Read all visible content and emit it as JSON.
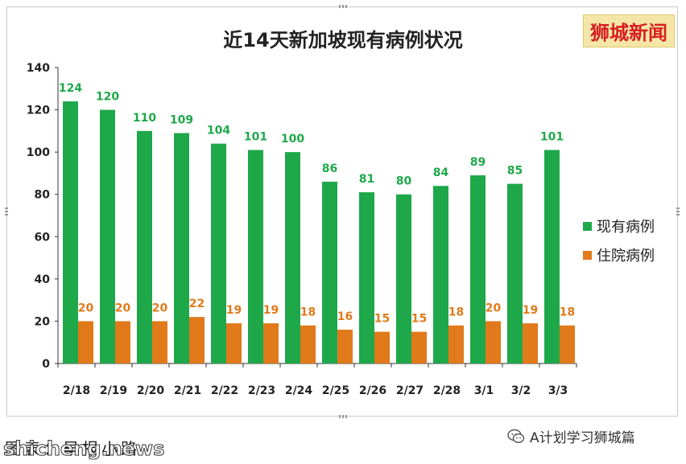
{
  "brand": "狮城新闻",
  "caption": "图表：早报小路",
  "source": "A计划学习狮城篇",
  "watermark": "shicheng.news",
  "legend": [
    "现有病例",
    "住院病例"
  ],
  "colors": {
    "existing": "#1ea84a",
    "hospital": "#e07a1a"
  },
  "chart_data": {
    "type": "bar",
    "title": "近14天新加坡现有病例状况",
    "categories": [
      "2/18",
      "2/19",
      "2/20",
      "2/21",
      "2/22",
      "2/23",
      "2/24",
      "2/25",
      "2/26",
      "2/27",
      "2/28",
      "3/1",
      "3/2",
      "3/3"
    ],
    "series": [
      {
        "name": "现有病例",
        "values": [
          124,
          120,
          110,
          109,
          104,
          101,
          100,
          86,
          81,
          80,
          84,
          89,
          85,
          101
        ]
      },
      {
        "name": "住院病例",
        "values": [
          20,
          20,
          20,
          22,
          19,
          19,
          18,
          16,
          15,
          15,
          18,
          20,
          19,
          18
        ]
      }
    ],
    "ylim": [
      0,
      140
    ],
    "yticks": [
      0,
      20,
      40,
      60,
      80,
      100,
      120,
      140
    ],
    "grid": false,
    "legend_position": "right"
  }
}
